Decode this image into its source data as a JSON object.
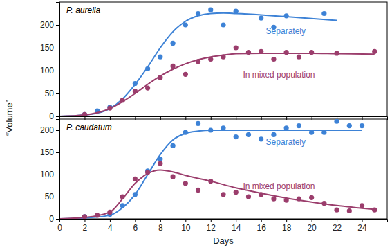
{
  "chart_data": [
    {
      "type": "scatter",
      "title": "P. aurelia",
      "y_label": "“Volume”",
      "xlim": [
        0,
        26
      ],
      "xticks": [
        0,
        2,
        4,
        6,
        8,
        10,
        12,
        14,
        16,
        18,
        20,
        22,
        24
      ],
      "ylim": [
        0,
        250
      ],
      "yticks": [
        0,
        50,
        100,
        150,
        200
      ],
      "tick_labels": "y",
      "series": [
        {
          "name": "Separately",
          "color": "#3d82d6",
          "marker": "circle",
          "line_style": "solid",
          "x": [
            2,
            3,
            4,
            6,
            7,
            8,
            9,
            10,
            11,
            12,
            13,
            14,
            16,
            17,
            18,
            21
          ],
          "values": [
            4,
            12,
            20,
            72,
            104,
            130,
            160,
            200,
            225,
            233,
            200,
            230,
            215,
            195,
            220,
            225
          ],
          "curve_x": [
            0,
            2,
            3,
            4,
            5,
            6,
            7,
            8,
            9,
            10,
            11,
            12,
            13,
            14,
            16,
            18,
            20,
            22
          ],
          "curve_values": [
            0,
            3,
            7,
            17,
            38,
            70,
            108,
            150,
            185,
            208,
            220,
            225,
            226,
            225,
            222,
            218,
            214,
            210
          ]
        },
        {
          "name": "In mixed population",
          "color": "#9b3d6c",
          "marker": "circle",
          "line_style": "solid",
          "x": [
            2,
            4,
            5,
            6,
            7,
            8,
            9,
            10,
            11,
            12,
            13,
            14,
            15,
            16,
            17,
            18,
            19,
            20,
            22,
            25
          ],
          "values": [
            4,
            18,
            35,
            55,
            62,
            85,
            110,
            92,
            120,
            125,
            130,
            150,
            140,
            142,
            125,
            140,
            130,
            140,
            138,
            142
          ],
          "curve_x": [
            0,
            2,
            4,
            5,
            6,
            7,
            8,
            9,
            10,
            11,
            12,
            13,
            14,
            16,
            18,
            20,
            22,
            25
          ],
          "curve_values": [
            0,
            3,
            17,
            32,
            50,
            70,
            88,
            103,
            115,
            124,
            130,
            134,
            137,
            138,
            138,
            138,
            137,
            136
          ]
        }
      ]
    },
    {
      "type": "scatter",
      "title": "P. caudatum",
      "x_label": "Days",
      "xlim": [
        0,
        26
      ],
      "xticks": [
        0,
        2,
        4,
        6,
        8,
        10,
        12,
        14,
        16,
        18,
        20,
        22,
        24
      ],
      "ylim": [
        0,
        225
      ],
      "yticks": [
        0,
        50,
        100,
        150,
        200
      ],
      "series": [
        {
          "name": "Separately",
          "color": "#3d82d6",
          "marker": "circle",
          "line_style": "solid",
          "x": [
            2,
            4,
            5,
            6,
            7,
            8,
            9,
            10,
            11,
            12,
            13,
            14,
            15,
            16,
            17,
            18,
            19,
            20,
            21,
            22,
            23,
            24
          ],
          "values": [
            5,
            10,
            30,
            55,
            108,
            135,
            165,
            195,
            215,
            200,
            205,
            185,
            190,
            180,
            190,
            205,
            210,
            195,
            195,
            220,
            210,
            210
          ],
          "curve_x": [
            0,
            2,
            4,
            5,
            6,
            7,
            8,
            9,
            10,
            11,
            12,
            14,
            16,
            18,
            20,
            22,
            24
          ],
          "curve_values": [
            0,
            2,
            8,
            25,
            55,
            100,
            145,
            178,
            193,
            198,
            200,
            200,
            200,
            200,
            200,
            200,
            200
          ]
        },
        {
          "name": "In mixed population",
          "color": "#9b3d6c",
          "marker": "circle",
          "line_style": "solid",
          "x": [
            2,
            3,
            4,
            5,
            6,
            7,
            8,
            9,
            10,
            11,
            12,
            13,
            14,
            15,
            16,
            17,
            18,
            19,
            20,
            21,
            22,
            23,
            24,
            25
          ],
          "values": [
            5,
            8,
            15,
            50,
            90,
            105,
            125,
            95,
            80,
            65,
            85,
            55,
            60,
            50,
            55,
            45,
            42,
            45,
            48,
            35,
            20,
            18,
            30,
            20
          ],
          "curve_x": [
            0,
            2,
            4,
            5,
            6,
            7,
            8,
            9,
            10,
            12,
            14,
            16,
            18,
            20,
            22,
            24,
            25
          ],
          "curve_values": [
            0,
            3,
            15,
            45,
            80,
            102,
            110,
            106,
            98,
            85,
            70,
            58,
            47,
            38,
            30,
            24,
            21
          ]
        }
      ]
    }
  ]
}
